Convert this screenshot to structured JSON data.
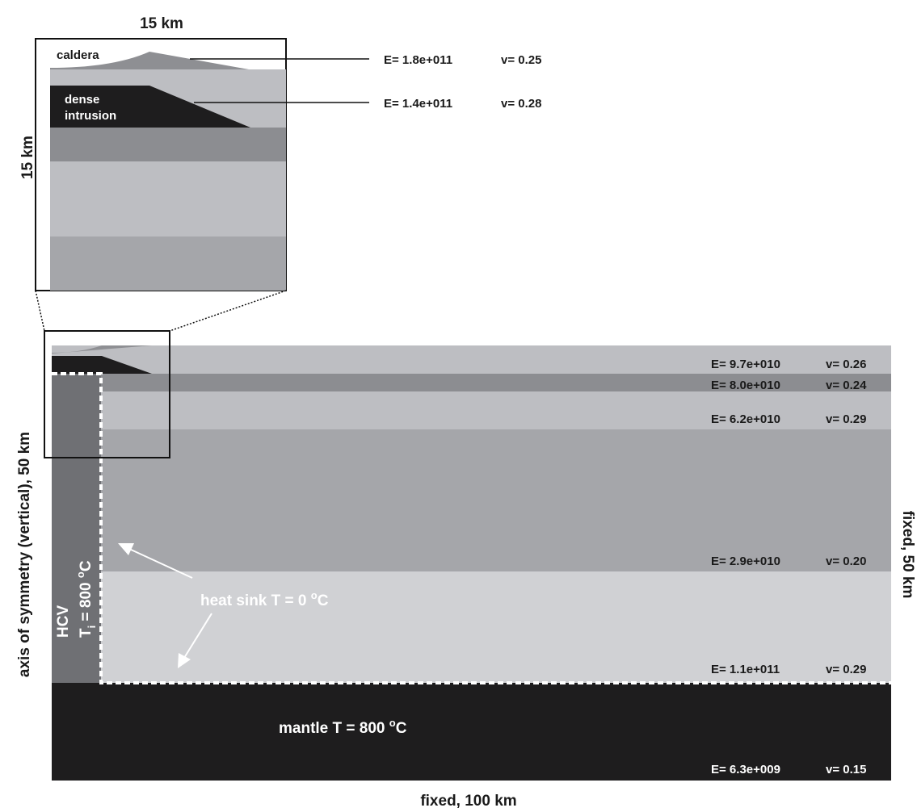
{
  "inset": {
    "width_label": "15 km",
    "height_label": "15 km",
    "caldera_label": "caldera",
    "intrusion_label_line1": "dense",
    "intrusion_label_line2": "intrusion",
    "callouts": [
      {
        "e": "E= 1.8e+011",
        "v": "v= 0.25"
      },
      {
        "e": "E= 1.4e+011",
        "v": "v= 0.28"
      }
    ]
  },
  "main": {
    "left_axis_label": "axis of symmetry (vertical), 50 km",
    "right_axis_label": "fixed, 50 km",
    "bottom_axis_label": "fixed, 100 km",
    "hcv_label": "HCV",
    "hcv_temp_prefix": "T",
    "hcv_temp_subscript": "i",
    "hcv_temp_value": " = 800 ",
    "hcv_temp_degree": "o",
    "hcv_temp_unit": "C",
    "heat_sink_prefix": "heat sink  T = 0 ",
    "heat_sink_degree": "o",
    "heat_sink_unit": "C",
    "mantle_prefix": "mantle  T = 800 ",
    "mantle_degree": "o",
    "mantle_unit": "C",
    "layers": [
      {
        "e": "E= 9.7e+010",
        "v": "v= 0.26",
        "color": "#bdbec2"
      },
      {
        "e": "E= 8.0e+010",
        "v": "v= 0.24",
        "color": "#8c8d91"
      },
      {
        "e": "E= 6.2e+010",
        "v": "v= 0.29",
        "color": "#bdbec2"
      },
      {
        "e": "E= 2.9e+010",
        "v": "v= 0.20",
        "color": "#a5a6aa"
      },
      {
        "e": "E= 1.1e+011",
        "v": "v= 0.29",
        "color": "#d0d1d4"
      },
      {
        "e": "E= 6.3e+009",
        "v": "v= 0.15",
        "color": "#1e1d1e"
      }
    ]
  },
  "colors": {
    "caldera": "#8e8f93",
    "intrusion": "#1e1d1e",
    "hcv": "#6f7074",
    "heat_sink_line": "#ffffff"
  }
}
